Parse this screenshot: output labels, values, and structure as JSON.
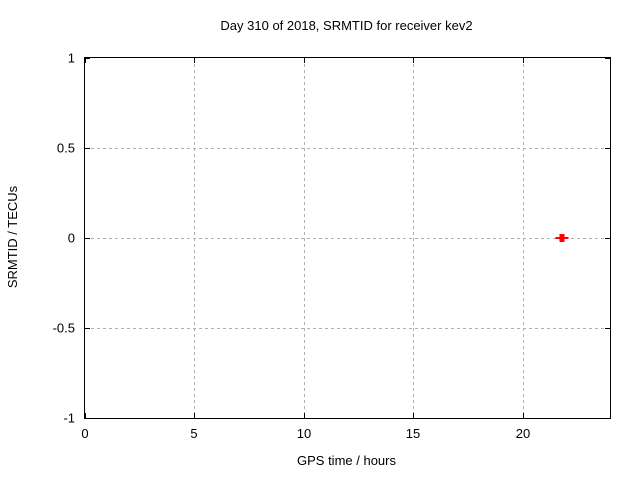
{
  "figure": {
    "background": "#ffffff",
    "border_color": "#000000",
    "grid_color": "#b0b0b0",
    "text_color": "#000000"
  },
  "chart_data": {
    "type": "scatter",
    "title": "Day 310 of 2018, SRMTID for receiver kev2",
    "xlabel": "GPS time / hours",
    "ylabel": "SRMTID / TECUs",
    "xlim": [
      0,
      24
    ],
    "ylim": [
      -1,
      1
    ],
    "x_ticks": [
      0,
      5,
      10,
      15,
      20
    ],
    "x_tick_labels": [
      "0",
      "5",
      "10",
      "15",
      "20"
    ],
    "y_ticks": [
      -1,
      -0.5,
      0,
      0.5,
      1
    ],
    "y_tick_labels": [
      "-1",
      "-0.5",
      "0",
      "0.5",
      "1"
    ],
    "grid": true,
    "grid_style": "dashed",
    "legend": "none",
    "series": [
      {
        "name": "SRMTID",
        "marker": "plus",
        "color": "#ff0000",
        "points": [
          {
            "x": 21.8,
            "y": 0.0
          }
        ]
      }
    ]
  }
}
